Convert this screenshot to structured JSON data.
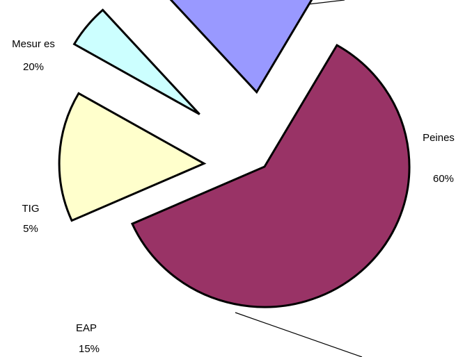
{
  "chart_data": {
    "type": "pie",
    "title": "",
    "slices": [
      {
        "name": "Peines",
        "label": "Peines",
        "value": 60,
        "pct_label": "60%",
        "color": "#993366"
      },
      {
        "name": "EAP",
        "label": "EAP",
        "value": 15,
        "pct_label": "15%",
        "color": "#FFFFCC"
      },
      {
        "name": "TIG",
        "label": "TIG",
        "value": 5,
        "pct_label": "5%",
        "color": "#CCFFFF"
      },
      {
        "name": "Mesures",
        "label": "Mesur es",
        "value": 20,
        "pct_label": "20%",
        "color": "#9999FF"
      }
    ],
    "exploded": true,
    "legend": "none",
    "data_labels": "category and percent"
  }
}
